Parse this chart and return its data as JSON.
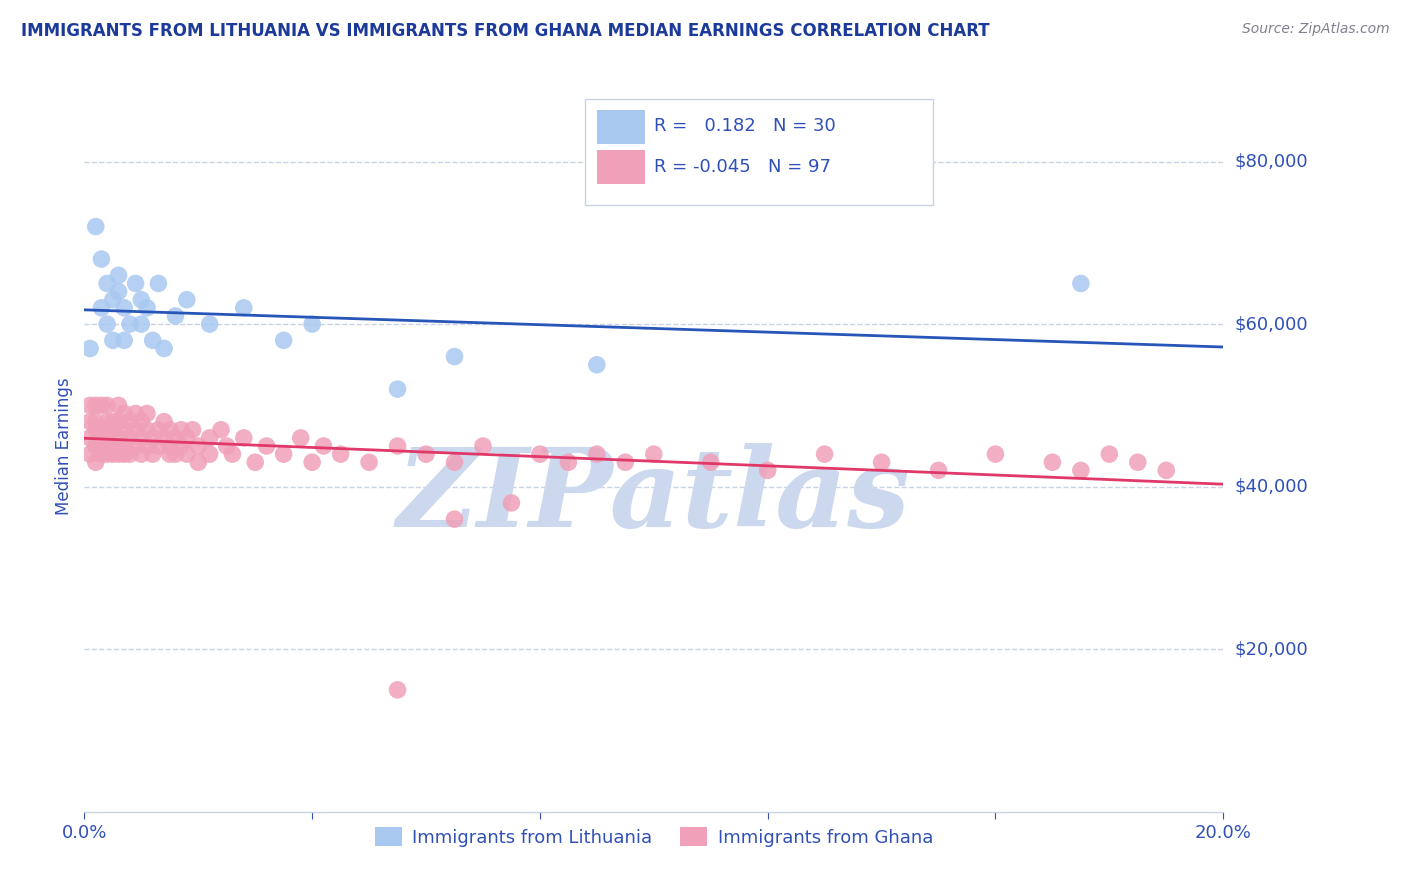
{
  "title": "IMMIGRANTS FROM LITHUANIA VS IMMIGRANTS FROM GHANA MEDIAN EARNINGS CORRELATION CHART",
  "source_text": "Source: ZipAtlas.com",
  "ylabel": "Median Earnings",
  "xlim": [
    0.0,
    0.2
  ],
  "ylim": [
    0,
    90000
  ],
  "yticks": [
    20000,
    40000,
    60000,
    80000
  ],
  "ytick_labels": [
    "$20,000",
    "$40,000",
    "$60,000",
    "$80,000"
  ],
  "xticks": [
    0.0,
    0.04,
    0.08,
    0.12,
    0.16,
    0.2
  ],
  "xtick_labels": [
    "0.0%",
    "",
    "",
    "",
    "",
    "20.0%"
  ],
  "lithuania": {
    "name": "Immigrants from Lithuania",
    "color": "#a8c8f0",
    "line_color": "#2855b8",
    "R": "0.182",
    "N": "30",
    "x": [
      0.001,
      0.002,
      0.003,
      0.003,
      0.004,
      0.004,
      0.005,
      0.005,
      0.006,
      0.006,
      0.007,
      0.007,
      0.008,
      0.009,
      0.01,
      0.01,
      0.011,
      0.012,
      0.013,
      0.014,
      0.016,
      0.018,
      0.022,
      0.028,
      0.035,
      0.04,
      0.055,
      0.065,
      0.09,
      0.175
    ],
    "y": [
      57000,
      72000,
      62000,
      68000,
      60000,
      65000,
      58000,
      63000,
      64000,
      66000,
      62000,
      58000,
      60000,
      65000,
      63000,
      60000,
      62000,
      58000,
      65000,
      57000,
      61000,
      63000,
      60000,
      62000,
      58000,
      60000,
      52000,
      56000,
      55000,
      65000
    ]
  },
  "ghana": {
    "name": "Immigrants from Ghana",
    "color": "#f0a0b8",
    "line_color": "#e03868",
    "R": "-0.045",
    "N": "97",
    "x": [
      0.001,
      0.001,
      0.001,
      0.001,
      0.002,
      0.002,
      0.002,
      0.002,
      0.002,
      0.003,
      0.003,
      0.003,
      0.003,
      0.003,
      0.004,
      0.004,
      0.004,
      0.004,
      0.005,
      0.005,
      0.005,
      0.005,
      0.006,
      0.006,
      0.006,
      0.006,
      0.007,
      0.007,
      0.007,
      0.007,
      0.008,
      0.008,
      0.008,
      0.009,
      0.009,
      0.009,
      0.01,
      0.01,
      0.01,
      0.011,
      0.011,
      0.011,
      0.012,
      0.012,
      0.013,
      0.013,
      0.014,
      0.014,
      0.015,
      0.015,
      0.015,
      0.016,
      0.016,
      0.017,
      0.017,
      0.018,
      0.018,
      0.019,
      0.02,
      0.02,
      0.022,
      0.022,
      0.024,
      0.025,
      0.026,
      0.028,
      0.03,
      0.032,
      0.035,
      0.038,
      0.04,
      0.042,
      0.045,
      0.05,
      0.055,
      0.06,
      0.065,
      0.07,
      0.08,
      0.085,
      0.09,
      0.095,
      0.1,
      0.11,
      0.12,
      0.13,
      0.14,
      0.15,
      0.16,
      0.17,
      0.175,
      0.18,
      0.185,
      0.19,
      0.065,
      0.075,
      0.055
    ],
    "y": [
      46000,
      48000,
      44000,
      50000,
      45000,
      47000,
      50000,
      43000,
      48000,
      46000,
      44000,
      50000,
      47000,
      45000,
      48000,
      46000,
      44000,
      50000,
      47000,
      45000,
      48000,
      44000,
      46000,
      48000,
      44000,
      50000,
      47000,
      45000,
      49000,
      44000,
      46000,
      48000,
      44000,
      47000,
      45000,
      49000,
      46000,
      48000,
      44000,
      47000,
      45000,
      49000,
      46000,
      44000,
      47000,
      45000,
      46000,
      48000,
      44000,
      47000,
      45000,
      46000,
      44000,
      47000,
      45000,
      46000,
      44000,
      47000,
      45000,
      43000,
      46000,
      44000,
      47000,
      45000,
      44000,
      46000,
      43000,
      45000,
      44000,
      46000,
      43000,
      45000,
      44000,
      43000,
      45000,
      44000,
      43000,
      45000,
      44000,
      43000,
      44000,
      43000,
      44000,
      43000,
      42000,
      44000,
      43000,
      42000,
      44000,
      43000,
      42000,
      44000,
      43000,
      42000,
      36000,
      38000,
      15000
    ]
  },
  "legend_R1": "0.182",
  "legend_N1": "30",
  "legend_R2": "-0.045",
  "legend_N2": "97",
  "watermark": "ZIPatlas",
  "watermark_color": "#ccd8ee",
  "background_color": "#ffffff",
  "grid_color": "#c8d4e4",
  "title_color": "#1c3a9a",
  "tick_color": "#3050b8",
  "ylabel_color": "#3050b8",
  "source_color": "#808090"
}
